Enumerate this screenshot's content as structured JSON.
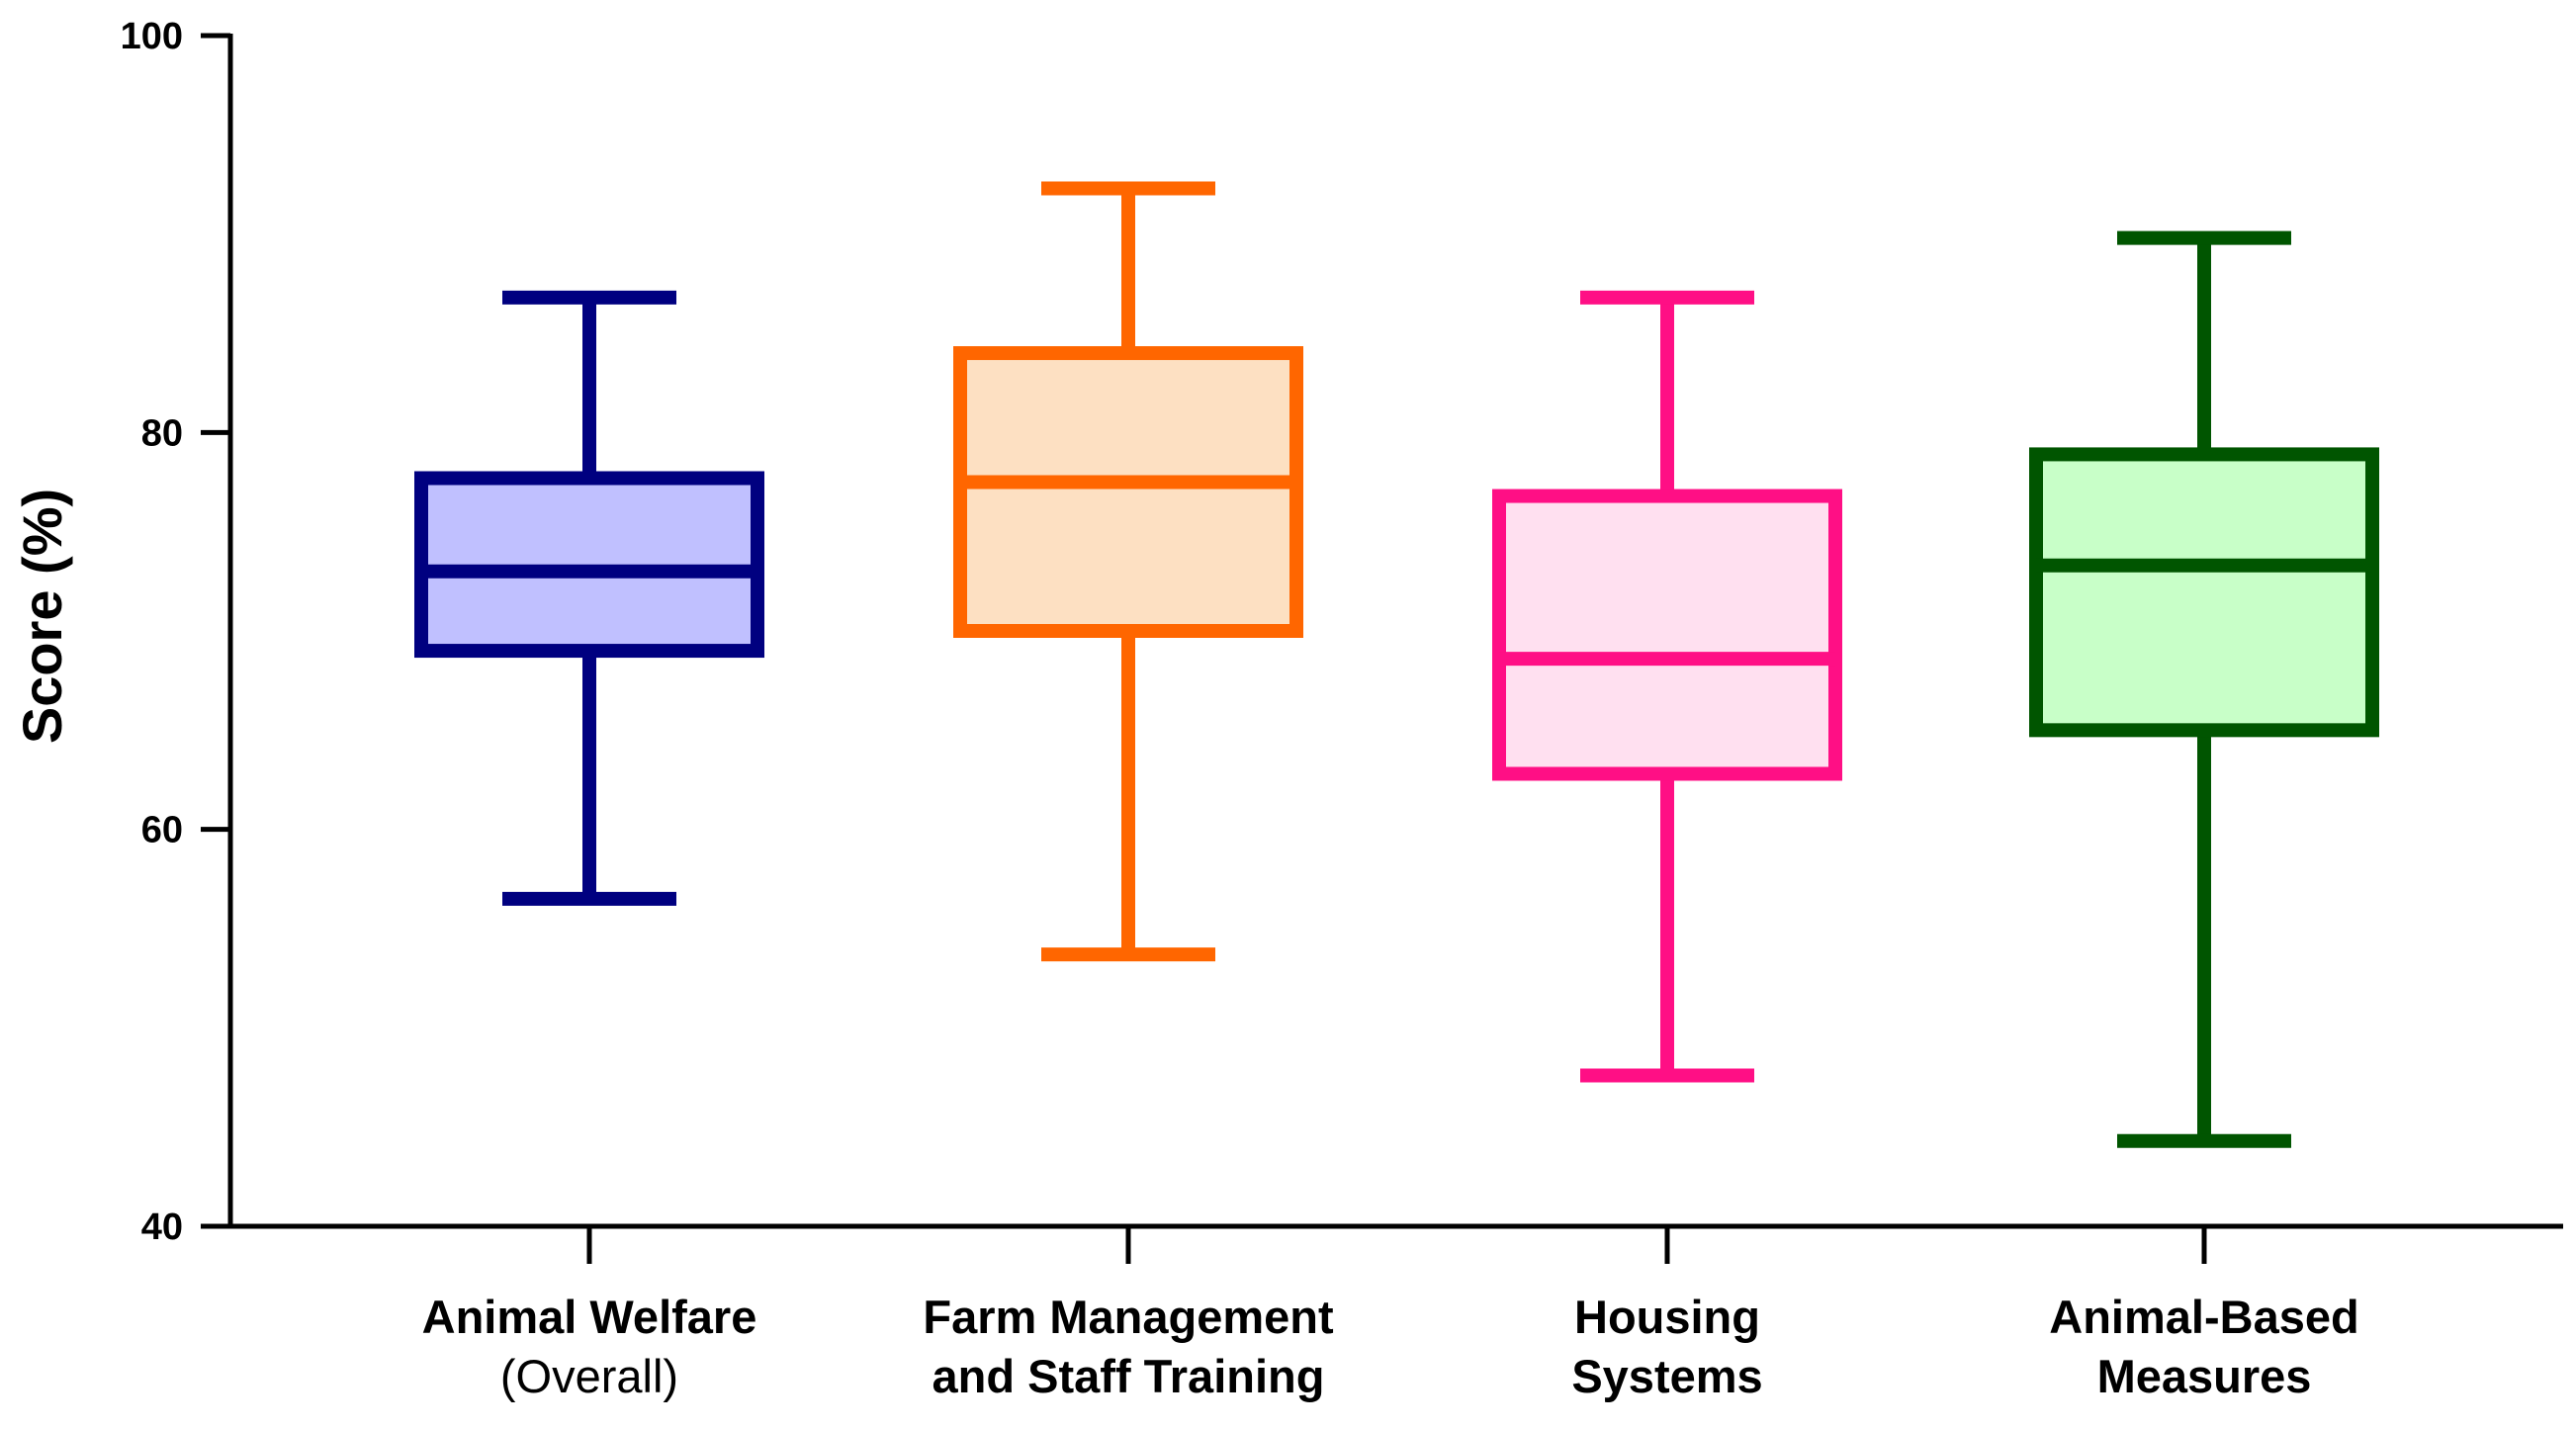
{
  "chart_data": {
    "type": "boxplot",
    "title": "",
    "xlabel": "",
    "ylabel": "Score (%)",
    "ylim": [
      40,
      100
    ],
    "yticks": [
      40,
      60,
      80,
      100
    ],
    "grid": false,
    "series": [
      {
        "label_lines": [
          {
            "text": "Animal Welfare",
            "bold": true
          },
          {
            "text": "(Overall)",
            "bold": false
          }
        ],
        "min": 56.5,
        "q1": 69.0,
        "median": 73.0,
        "q3": 77.7,
        "max": 86.8,
        "stroke": "#000080",
        "fill": "#c0c0ff"
      },
      {
        "label_lines": [
          {
            "text": "Farm Management",
            "bold": true
          },
          {
            "text": "and Staff Training",
            "bold": true
          }
        ],
        "min": 53.7,
        "q1": 70.0,
        "median": 77.5,
        "q3": 84.0,
        "max": 92.3,
        "stroke": "#ff6600",
        "fill": "#fde0c2"
      },
      {
        "label_lines": [
          {
            "text": "Housing",
            "bold": true
          },
          {
            "text": "Systems",
            "bold": true
          }
        ],
        "min": 47.6,
        "q1": 62.8,
        "median": 68.6,
        "q3": 76.8,
        "max": 86.8,
        "stroke": "#ff0f85",
        "fill": "#ffe0f0"
      },
      {
        "label_lines": [
          {
            "text": "Animal-Based",
            "bold": true
          },
          {
            "text": "Measures",
            "bold": true
          }
        ],
        "min": 44.3,
        "q1": 65.0,
        "median": 73.3,
        "q3": 78.9,
        "max": 89.8,
        "stroke": "#005500",
        "fill": "#c8ffc8"
      }
    ]
  }
}
